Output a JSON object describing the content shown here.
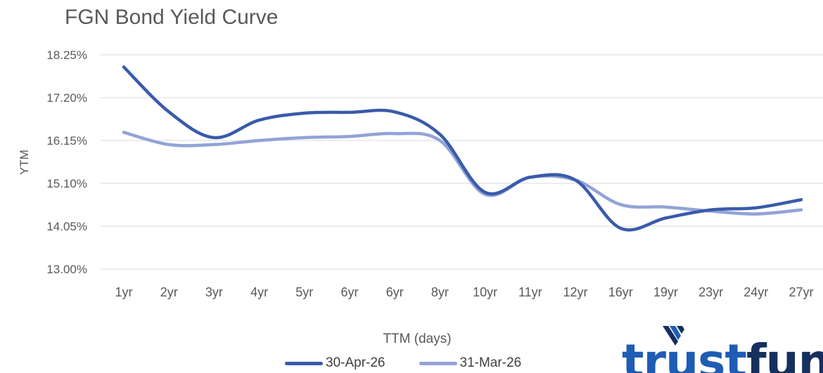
{
  "chart_data": {
    "type": "line",
    "title": "FGN Bond Yield Curve",
    "xlabel": "TTM (days)",
    "ylabel": "YTM",
    "categories": [
      "1yr",
      "2yr",
      "3yr",
      "4yr",
      "5yr",
      "6yr",
      "6yr",
      "8yr",
      "10yr",
      "11yr",
      "12yr",
      "16yr",
      "19yr",
      "23yr",
      "24yr",
      "27yr"
    ],
    "ylim": [
      13.0,
      18.25
    ],
    "yticks": [
      "13.00%",
      "14.05%",
      "15.10%",
      "16.15%",
      "17.20%",
      "18.25%"
    ],
    "ytick_values": [
      13.0,
      14.05,
      15.1,
      16.15,
      17.2,
      18.25
    ],
    "grid": true,
    "legend_position": "bottom",
    "smooth": true,
    "series": [
      {
        "name": "30-Apr-26",
        "color": "#3A5BAA",
        "values": [
          17.95,
          16.85,
          16.22,
          16.65,
          16.82,
          16.84,
          16.85,
          16.3,
          14.88,
          15.25,
          15.18,
          14.0,
          14.25,
          14.45,
          14.5,
          14.7
        ]
      },
      {
        "name": "31-Mar-26",
        "color": "#92A3D7",
        "values": [
          16.35,
          16.05,
          16.05,
          16.15,
          16.22,
          16.25,
          16.32,
          16.15,
          14.83,
          15.25,
          15.18,
          14.58,
          14.52,
          14.42,
          14.35,
          14.45
        ]
      }
    ]
  },
  "logo": {
    "text_a": "tr",
    "text_b": "u",
    "text_c": "st",
    "text_d": "fund"
  }
}
